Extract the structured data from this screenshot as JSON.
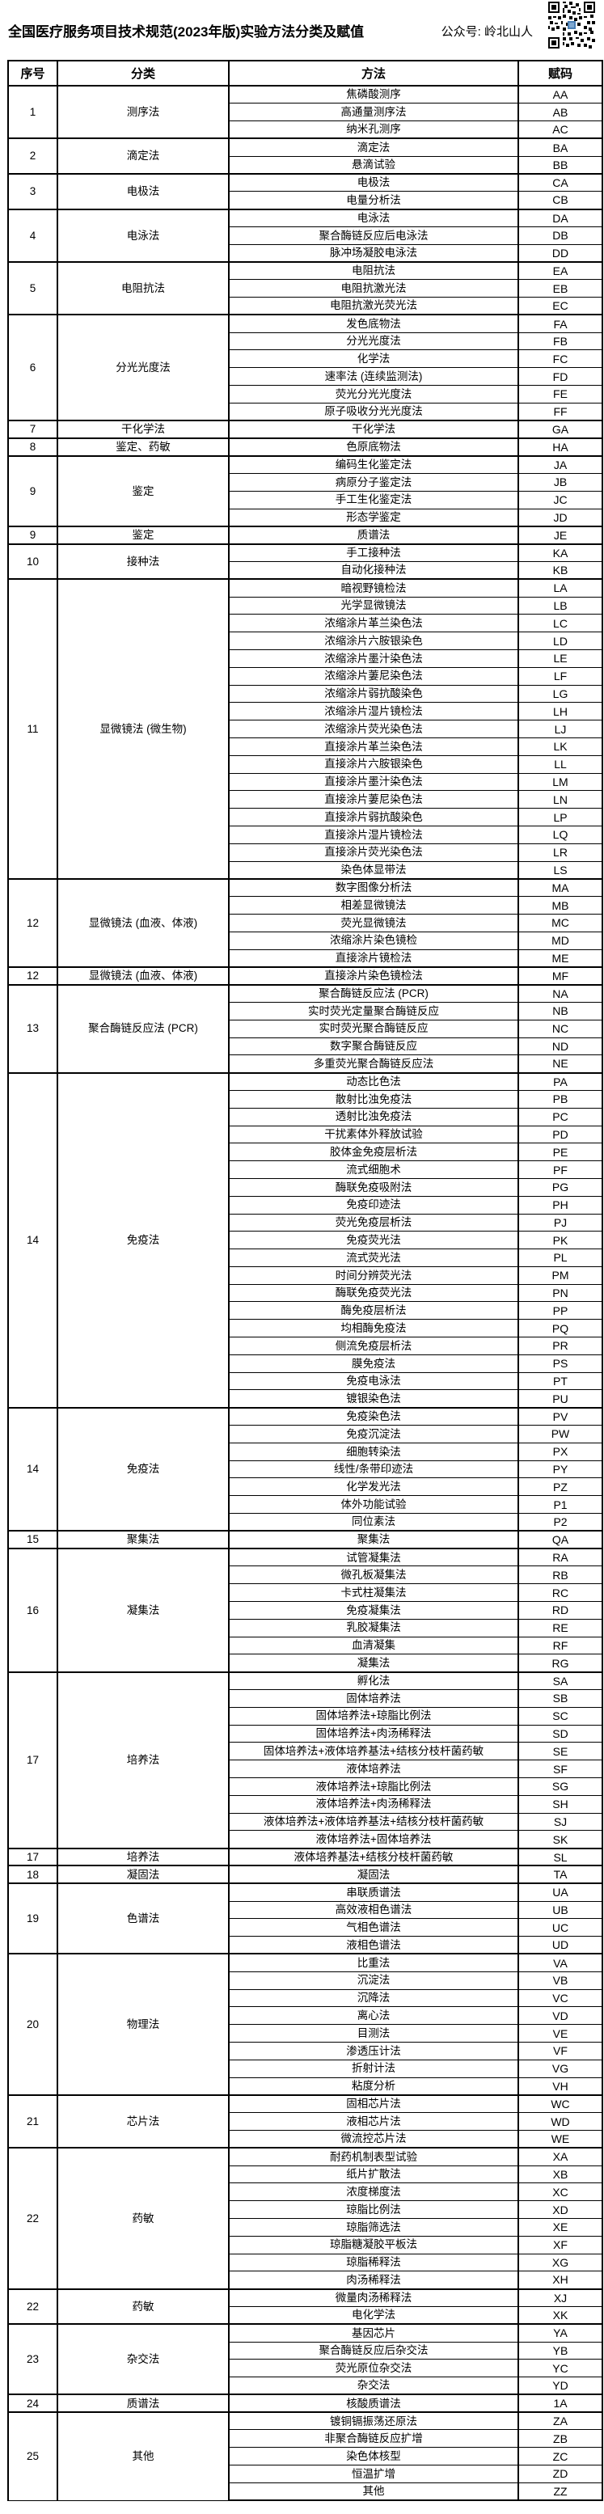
{
  "page": {
    "title": "全国医疗服务项目技术规范(2023年版)实验方法分类及赋值",
    "wechat_label": "公众号: 岭北山人",
    "qr_icon": "qr-code"
  },
  "table": {
    "headers": [
      "序号",
      "分类",
      "方法",
      "赋码"
    ],
    "blocks": [
      {
        "no": "1",
        "category": "测序法",
        "methods": [
          {
            "m": "焦磷酸测序",
            "c": "AA"
          },
          {
            "m": "高通量测序法",
            "c": "AB"
          },
          {
            "m": "纳米孔测序",
            "c": "AC"
          }
        ]
      },
      {
        "no": "2",
        "category": "滴定法",
        "methods": [
          {
            "m": "滴定法",
            "c": "BA"
          },
          {
            "m": "悬滴试验",
            "c": "BB"
          }
        ]
      },
      {
        "no": "3",
        "category": "电极法",
        "methods": [
          {
            "m": "电极法",
            "c": "CA"
          },
          {
            "m": "电量分析法",
            "c": "CB"
          }
        ]
      },
      {
        "no": "4",
        "category": "电泳法",
        "methods": [
          {
            "m": "电泳法",
            "c": "DA"
          },
          {
            "m": "聚合酶链反应后电泳法",
            "c": "DB"
          },
          {
            "m": "脉冲场凝胶电泳法",
            "c": "DD"
          }
        ]
      },
      {
        "no": "5",
        "category": "电阻抗法",
        "methods": [
          {
            "m": "电阻抗法",
            "c": "EA"
          },
          {
            "m": "电阻抗激光法",
            "c": "EB"
          },
          {
            "m": "电阻抗激光荧光法",
            "c": "EC"
          }
        ]
      },
      {
        "no": "6",
        "category": "分光光度法",
        "methods": [
          {
            "m": "发色底物法",
            "c": "FA"
          },
          {
            "m": "分光光度法",
            "c": "FB"
          },
          {
            "m": "化学法",
            "c": "FC"
          },
          {
            "m": "速率法 (连续监测法)",
            "c": "FD"
          },
          {
            "m": "荧光分光光度法",
            "c": "FE"
          },
          {
            "m": "原子吸收分光光度法",
            "c": "FF"
          }
        ]
      },
      {
        "no": "7",
        "category": "干化学法",
        "methods": [
          {
            "m": "干化学法",
            "c": "GA"
          }
        ]
      },
      {
        "no": "8",
        "category": "鉴定、药敏",
        "methods": [
          {
            "m": "色原底物法",
            "c": "HA"
          }
        ]
      },
      {
        "no": "9",
        "category": "鉴定",
        "methods": [
          {
            "m": "编码生化鉴定法",
            "c": "JA"
          },
          {
            "m": "病原分子鉴定法",
            "c": "JB"
          },
          {
            "m": "手工生化鉴定法",
            "c": "JC"
          },
          {
            "m": "形态学鉴定",
            "c": "JD"
          }
        ]
      },
      {
        "no": "9",
        "category": "鉴定",
        "methods": [
          {
            "m": "质谱法",
            "c": "JE"
          }
        ]
      },
      {
        "no": "10",
        "category": "接种法",
        "methods": [
          {
            "m": "手工接种法",
            "c": "KA"
          },
          {
            "m": "自动化接种法",
            "c": "KB"
          }
        ]
      },
      {
        "no": "11",
        "category": "显微镜法 (微生物)",
        "methods": [
          {
            "m": "暗视野镜检法",
            "c": "LA"
          },
          {
            "m": "光学显微镜法",
            "c": "LB"
          },
          {
            "m": "浓缩涂片革兰染色法",
            "c": "LC"
          },
          {
            "m": "浓缩涂片六胺银染色",
            "c": "LD"
          },
          {
            "m": "浓缩涂片墨汁染色法",
            "c": "LE"
          },
          {
            "m": "浓缩涂片萋尼染色法",
            "c": "LF"
          },
          {
            "m": "浓缩涂片弱抗酸染色",
            "c": "LG"
          },
          {
            "m": "浓缩涂片湿片镜检法",
            "c": "LH"
          },
          {
            "m": "浓缩涂片荧光染色法",
            "c": "LJ"
          },
          {
            "m": "直接涂片革兰染色法",
            "c": "LK"
          },
          {
            "m": "直接涂片六胺银染色",
            "c": "LL"
          },
          {
            "m": "直接涂片墨汁染色法",
            "c": "LM"
          },
          {
            "m": "直接涂片萋尼染色法",
            "c": "LN"
          },
          {
            "m": "直接涂片弱抗酸染色",
            "c": "LP"
          },
          {
            "m": "直接涂片湿片镜检法",
            "c": "LQ"
          },
          {
            "m": "直接涂片荧光染色法",
            "c": "LR"
          },
          {
            "m": "染色体显带法",
            "c": "LS"
          }
        ]
      },
      {
        "no": "12",
        "category": "显微镜法 (血液、体液)",
        "methods": [
          {
            "m": "数字图像分析法",
            "c": "MA"
          },
          {
            "m": "相差显微镜法",
            "c": "MB"
          },
          {
            "m": "荧光显微镜法",
            "c": "MC"
          },
          {
            "m": "浓缩涂片染色镜检",
            "c": "MD"
          },
          {
            "m": "直接涂片镜检法",
            "c": "ME"
          }
        ]
      },
      {
        "no": "12",
        "category": "显微镜法 (血液、体液)",
        "methods": [
          {
            "m": "直接涂片染色镜检法",
            "c": "MF"
          }
        ]
      },
      {
        "no": "13",
        "category": "聚合酶链反应法 (PCR)",
        "methods": [
          {
            "m": "聚合酶链反应法 (PCR)",
            "c": "NA"
          },
          {
            "m": "实时荧光定量聚合酶链反应",
            "c": "NB"
          },
          {
            "m": "实时荧光聚合酶链反应",
            "c": "NC"
          },
          {
            "m": "数字聚合酶链反应",
            "c": "ND"
          },
          {
            "m": "多重荧光聚合酶链反应法",
            "c": "NE"
          }
        ]
      },
      {
        "no": "14",
        "category": "免疫法",
        "methods": [
          {
            "m": "动态比色法",
            "c": "PA"
          },
          {
            "m": "散射比浊免疫法",
            "c": "PB"
          },
          {
            "m": "透射比浊免疫法",
            "c": "PC"
          },
          {
            "m": "干扰素体外释放试验",
            "c": "PD"
          },
          {
            "m": "胶体金免疫层析法",
            "c": "PE"
          },
          {
            "m": "流式细胞术",
            "c": "PF"
          },
          {
            "m": "酶联免疫吸附法",
            "c": "PG"
          },
          {
            "m": "免疫印迹法",
            "c": "PH"
          },
          {
            "m": "荧光免疫层析法",
            "c": "PJ"
          },
          {
            "m": "免疫荧光法",
            "c": "PK"
          },
          {
            "m": "流式荧光法",
            "c": "PL"
          },
          {
            "m": "时间分辨荧光法",
            "c": "PM"
          },
          {
            "m": "酶联免疫荧光法",
            "c": "PN"
          },
          {
            "m": "酶免疫层析法",
            "c": "PP"
          },
          {
            "m": "均相酶免疫法",
            "c": "PQ"
          },
          {
            "m": "侧流免疫层析法",
            "c": "PR"
          },
          {
            "m": "膜免疫法",
            "c": "PS"
          },
          {
            "m": "免疫电泳法",
            "c": "PT"
          },
          {
            "m": "镀银染色法",
            "c": "PU"
          }
        ]
      },
      {
        "no": "14",
        "category": "免疫法",
        "methods": [
          {
            "m": "免疫染色法",
            "c": "PV"
          },
          {
            "m": "免疫沉淀法",
            "c": "PW"
          },
          {
            "m": "细胞转染法",
            "c": "PX"
          },
          {
            "m": "线性/条带印迹法",
            "c": "PY"
          },
          {
            "m": "化学发光法",
            "c": "PZ"
          },
          {
            "m": "体外功能试验",
            "c": "P1"
          },
          {
            "m": "同位素法",
            "c": "P2"
          }
        ]
      },
      {
        "no": "15",
        "category": "聚集法",
        "methods": [
          {
            "m": "聚集法",
            "c": "QA"
          }
        ]
      },
      {
        "no": "16",
        "category": "凝集法",
        "methods": [
          {
            "m": "试管凝集法",
            "c": "RA"
          },
          {
            "m": "微孔板凝集法",
            "c": "RB"
          },
          {
            "m": "卡式柱凝集法",
            "c": "RC"
          },
          {
            "m": "免疫凝集法",
            "c": "RD"
          },
          {
            "m": "乳胶凝集法",
            "c": "RE"
          },
          {
            "m": "血清凝集",
            "c": "RF"
          },
          {
            "m": "凝集法",
            "c": "RG"
          }
        ]
      },
      {
        "no": "17",
        "category": "培养法",
        "methods": [
          {
            "m": "孵化法",
            "c": "SA"
          },
          {
            "m": "固体培养法",
            "c": "SB"
          },
          {
            "m": "固体培养法+琼脂比例法",
            "c": "SC"
          },
          {
            "m": "固体培养法+肉汤稀释法",
            "c": "SD"
          },
          {
            "m": "固体培养法+液体培养基法+结核分枝杆菌药敏",
            "c": "SE"
          },
          {
            "m": "液体培养法",
            "c": "SF"
          },
          {
            "m": "液体培养法+琼脂比例法",
            "c": "SG"
          },
          {
            "m": "液体培养法+肉汤稀释法",
            "c": "SH"
          },
          {
            "m": "液体培养法+液体培养基法+结核分枝杆菌药敏",
            "c": "SJ"
          },
          {
            "m": "液体培养法+固体培养法",
            "c": "SK"
          }
        ]
      },
      {
        "no": "17",
        "category": "培养法",
        "methods": [
          {
            "m": "液体培养基法+结核分枝杆菌药敏",
            "c": "SL"
          }
        ]
      },
      {
        "no": "18",
        "category": "凝固法",
        "methods": [
          {
            "m": "凝固法",
            "c": "TA"
          }
        ]
      },
      {
        "no": "19",
        "category": "色谱法",
        "methods": [
          {
            "m": "串联质谱法",
            "c": "UA"
          },
          {
            "m": "高效液相色谱法",
            "c": "UB"
          },
          {
            "m": "气相色谱法",
            "c": "UC"
          },
          {
            "m": "液相色谱法",
            "c": "UD"
          }
        ]
      },
      {
        "no": "20",
        "category": "物理法",
        "methods": [
          {
            "m": "比重法",
            "c": "VA"
          },
          {
            "m": "沉淀法",
            "c": "VB"
          },
          {
            "m": "沉降法",
            "c": "VC"
          },
          {
            "m": "离心法",
            "c": "VD"
          },
          {
            "m": "目测法",
            "c": "VE"
          },
          {
            "m": "渗透压计法",
            "c": "VF"
          },
          {
            "m": "折射计法",
            "c": "VG"
          },
          {
            "m": "粘度分析",
            "c": "VH"
          }
        ]
      },
      {
        "no": "21",
        "category": "芯片法",
        "methods": [
          {
            "m": "固相芯片法",
            "c": "WC"
          },
          {
            "m": "液相芯片法",
            "c": "WD"
          },
          {
            "m": "微流控芯片法",
            "c": "WE"
          }
        ]
      },
      {
        "no": "22",
        "category": "药敏",
        "methods": [
          {
            "m": "耐药机制表型试验",
            "c": "XA"
          },
          {
            "m": "纸片扩散法",
            "c": "XB"
          },
          {
            "m": "浓度梯度法",
            "c": "XC"
          },
          {
            "m": "琼脂比例法",
            "c": "XD"
          },
          {
            "m": "琼脂筛选法",
            "c": "XE"
          },
          {
            "m": "琼脂糖凝胶平板法",
            "c": "XF"
          },
          {
            "m": "琼脂稀释法",
            "c": "XG"
          },
          {
            "m": "肉汤稀释法",
            "c": "XH"
          }
        ]
      },
      {
        "no": "22",
        "category": "药敏",
        "methods": [
          {
            "m": "微量肉汤稀释法",
            "c": "XJ"
          },
          {
            "m": "电化学法",
            "c": "XK"
          }
        ]
      },
      {
        "no": "23",
        "category": "杂交法",
        "methods": [
          {
            "m": "基因芯片",
            "c": "YA"
          },
          {
            "m": "聚合酶链反应后杂交法",
            "c": "YB"
          },
          {
            "m": "荧光原位杂交法",
            "c": "YC"
          },
          {
            "m": "杂交法",
            "c": "YD"
          }
        ]
      },
      {
        "no": "24",
        "category": "质谱法",
        "methods": [
          {
            "m": "核酸质谱法",
            "c": "1A"
          }
        ]
      },
      {
        "no": "25",
        "category": "其他",
        "methods": [
          {
            "m": "镀铜镉振荡还原法",
            "c": "ZA"
          },
          {
            "m": "非聚合酶链反应扩增",
            "c": "ZB"
          },
          {
            "m": "染色体核型",
            "c": "ZC"
          },
          {
            "m": "恒温扩增",
            "c": "ZD"
          },
          {
            "m": "其他",
            "c": "ZZ"
          }
        ]
      }
    ]
  }
}
